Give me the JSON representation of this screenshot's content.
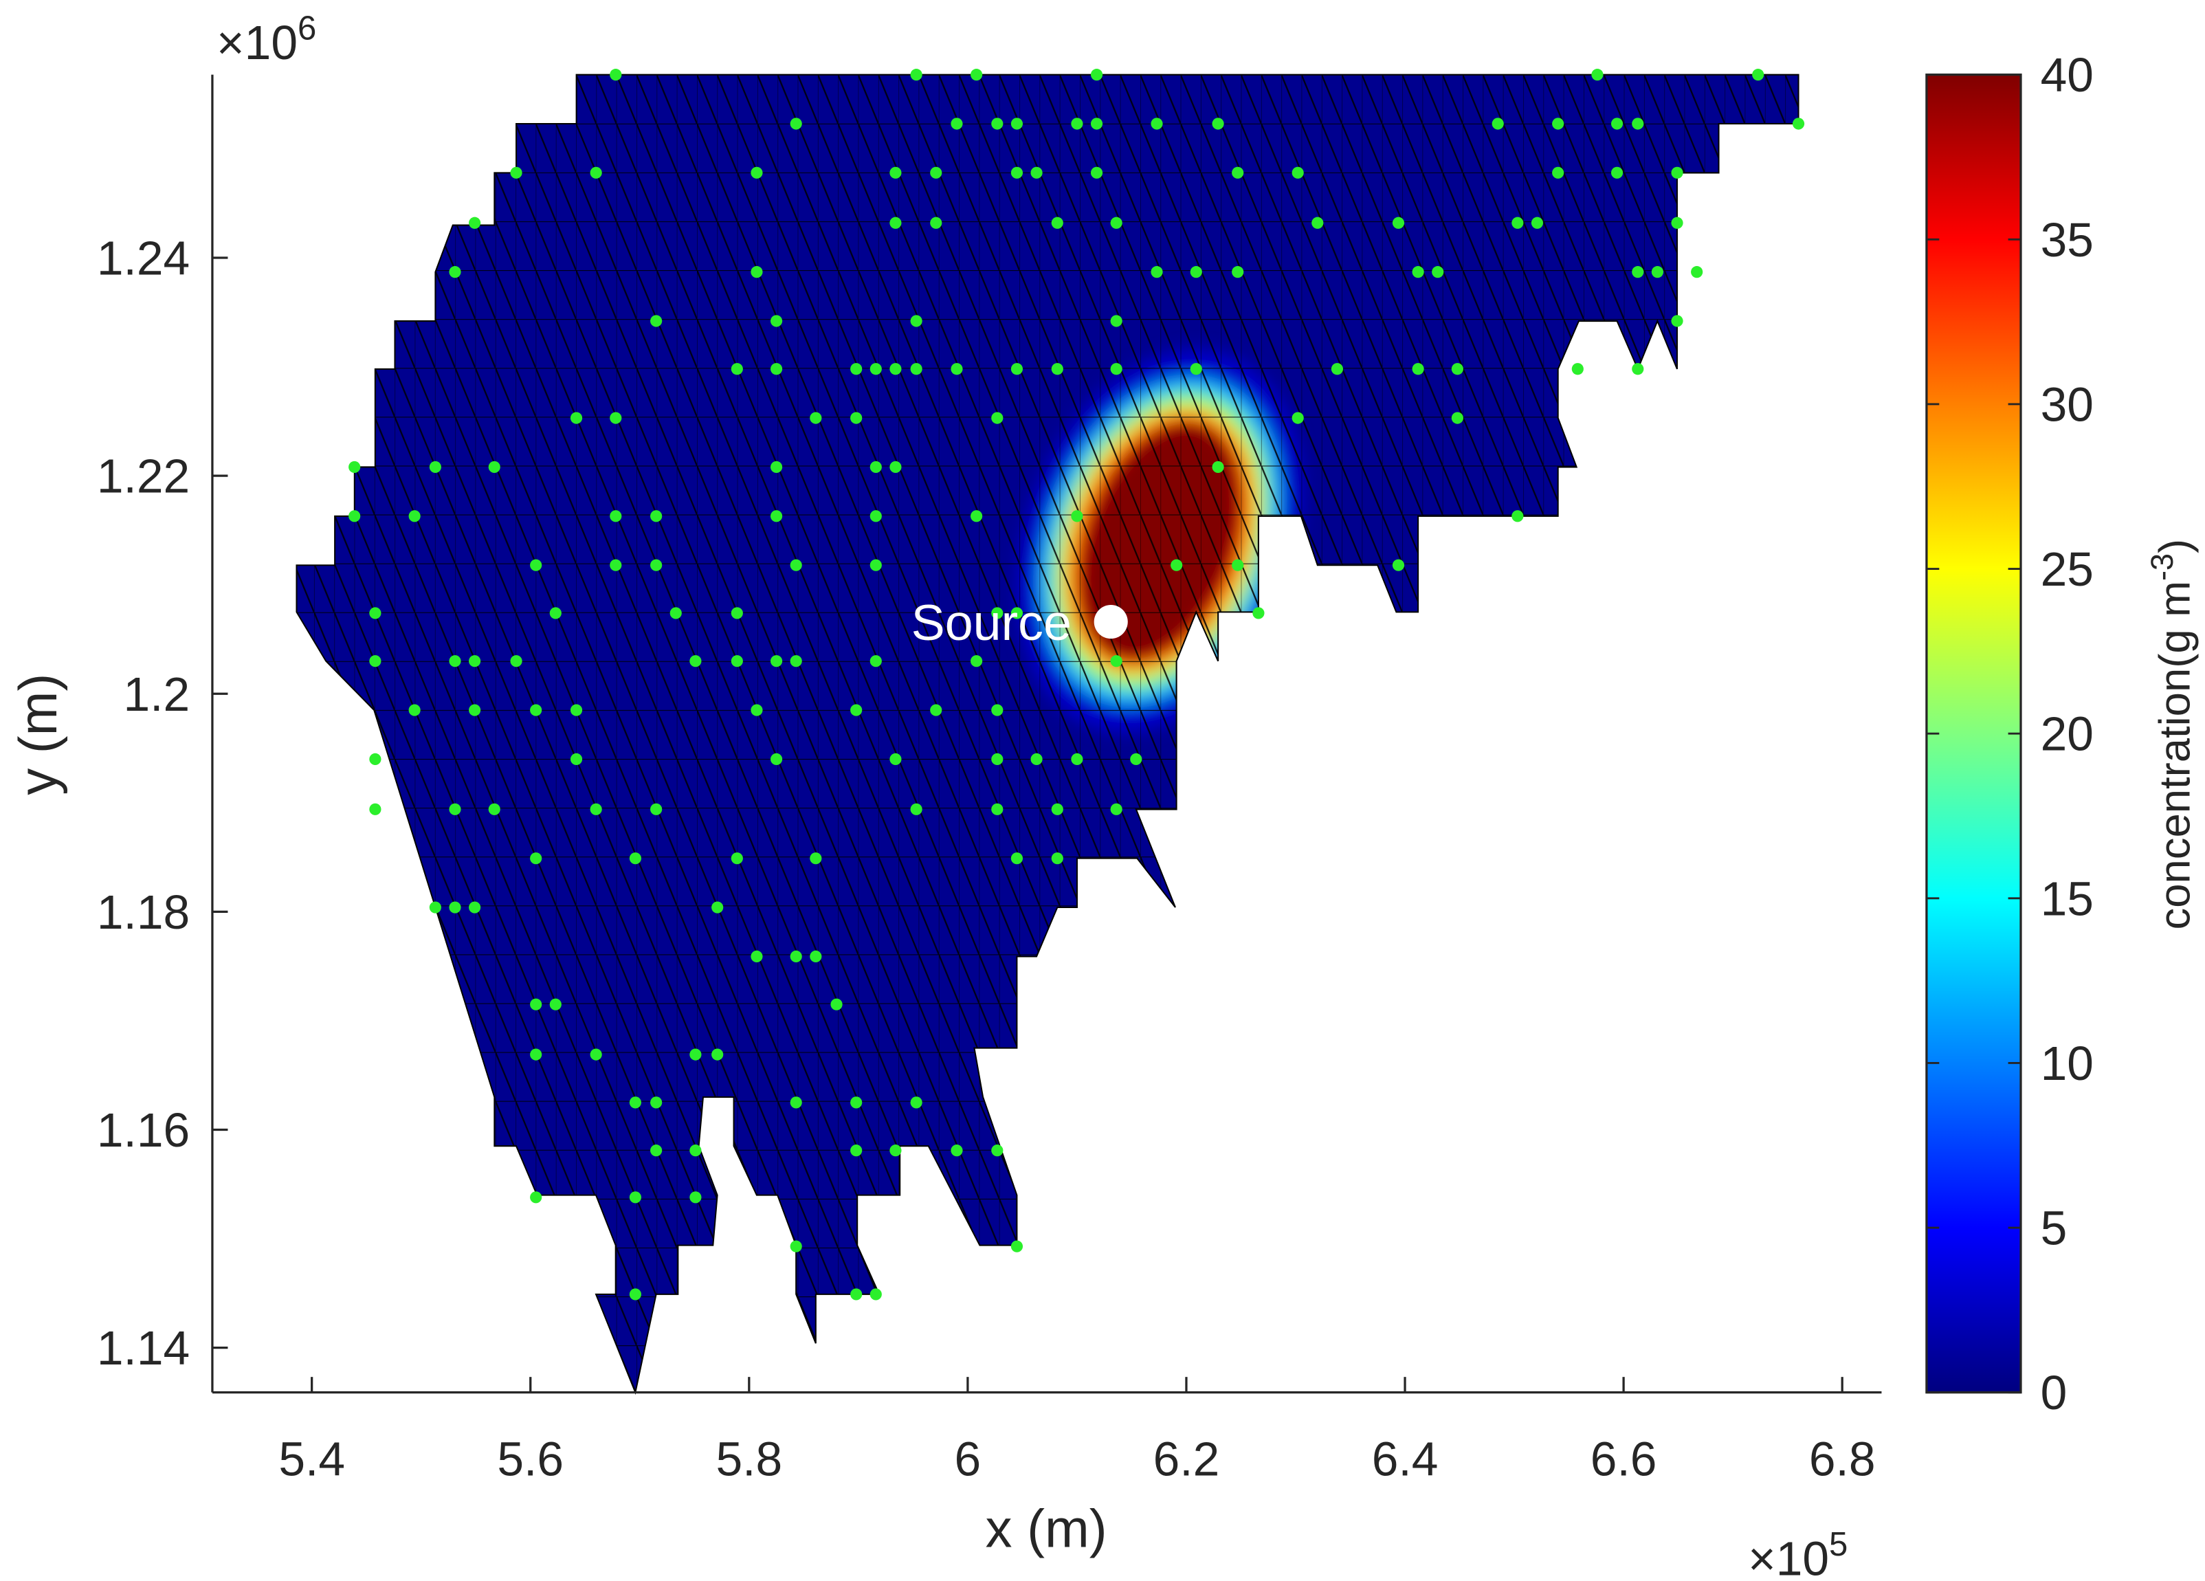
{
  "chart_data": {
    "type": "mesh",
    "xlabel": "x (m)",
    "ylabel": "y (m)",
    "x_multiplier": {
      "base": "×10",
      "power": "5"
    },
    "y_multiplier": {
      "base": "×10",
      "power": "6"
    },
    "xlim": [
      5.309,
      6.836
    ],
    "ylim": [
      1.1359,
      1.2568
    ],
    "xticks": [
      5.4,
      5.6,
      5.8,
      6,
      6.2,
      6.4,
      6.6,
      6.8
    ],
    "yticks": [
      1.14,
      1.16,
      1.18,
      1.2,
      1.22,
      1.24
    ],
    "domain": {
      "color": "#00008f",
      "mesh": true,
      "x": [
        5.642,
        6.76,
        6.76,
        6.687,
        6.687,
        6.649,
        6.649,
        6.631,
        6.613,
        6.594,
        6.559,
        6.54,
        6.54,
        6.557,
        6.54,
        6.54,
        6.412,
        6.412,
        6.392,
        6.375,
        6.32,
        6.305,
        6.266,
        6.266,
        6.229,
        6.229,
        6.209,
        6.191,
        6.191,
        6.154,
        6.19,
        6.155,
        6.1,
        6.1,
        6.082,
        6.063,
        6.045,
        6.045,
        6.006,
        6.014,
        6.045,
        6.045,
        6.011,
        5.964,
        5.938,
        5.938,
        5.899,
        5.899,
        5.919,
        5.861,
        5.861,
        5.843,
        5.843,
        5.826,
        5.807,
        5.786,
        5.786,
        5.758,
        5.754,
        5.771,
        5.767,
        5.735,
        5.735,
        5.715,
        5.696,
        5.66,
        5.678,
        5.678,
        5.66,
        5.606,
        5.587,
        5.567,
        5.567,
        5.457,
        5.413,
        5.386,
        5.386,
        5.421,
        5.421,
        5.439,
        5.439,
        5.458,
        5.458,
        5.476,
        5.476,
        5.513,
        5.513,
        5.529,
        5.567,
        5.567,
        5.587,
        5.587,
        5.642
      ],
      "y": [
        1.2568,
        1.2568,
        1.2523,
        1.2523,
        1.2478,
        1.2478,
        1.2298,
        1.2342,
        1.2298,
        1.2342,
        1.2342,
        1.2298,
        1.2253,
        1.2208,
        1.2208,
        1.2163,
        1.2163,
        1.2075,
        1.2075,
        1.2118,
        1.2118,
        1.2163,
        1.2163,
        1.2075,
        1.2075,
        1.203,
        1.2075,
        1.203,
        1.1894,
        1.1894,
        1.1804,
        1.1849,
        1.1849,
        1.1804,
        1.1804,
        1.1759,
        1.1759,
        1.1675,
        1.1675,
        1.163,
        1.154,
        1.1494,
        1.1494,
        1.1585,
        1.1585,
        1.154,
        1.154,
        1.1494,
        1.1449,
        1.1449,
        1.1404,
        1.1449,
        1.1494,
        1.154,
        1.154,
        1.1585,
        1.163,
        1.163,
        1.1585,
        1.154,
        1.1494,
        1.1494,
        1.1449,
        1.1449,
        1.1359,
        1.1449,
        1.1449,
        1.1494,
        1.154,
        1.154,
        1.1585,
        1.1585,
        1.163,
        1.1985,
        1.203,
        1.2075,
        1.2118,
        1.2118,
        1.2163,
        1.2163,
        1.2208,
        1.2208,
        1.2298,
        1.2298,
        1.2342,
        1.2342,
        1.2387,
        1.243,
        1.243,
        1.2478,
        1.2478,
        1.2523,
        1.2523
      ]
    },
    "field": {
      "x": 6.176,
      "y": 1.214,
      "levels": [
        3,
        12,
        20,
        27,
        34,
        40
      ],
      "rx": [
        0.122,
        0.103,
        0.093,
        0.084,
        0.075,
        0.067
      ],
      "ry": [
        0.0181,
        0.0155,
        0.0142,
        0.0129,
        0.012,
        0.0114
      ]
    },
    "sensors": {
      "color": "#2bef2b",
      "x": [
        5.678,
        5.953,
        6.008,
        6.118,
        6.576,
        6.723,
        5.843,
        5.99,
        6.027,
        6.045,
        6.1,
        6.118,
        6.173,
        6.229,
        6.485,
        6.54,
        6.594,
        6.613,
        6.76,
        5.587,
        5.66,
        5.807,
        5.934,
        5.971,
        6.045,
        6.063,
        6.118,
        6.247,
        6.302,
        6.54,
        6.594,
        6.649,
        5.549,
        5.934,
        5.971,
        6.082,
        6.136,
        6.32,
        6.394,
        6.503,
        6.521,
        6.649,
        5.531,
        5.807,
        6.173,
        6.209,
        6.247,
        6.412,
        6.43,
        6.613,
        6.631,
        6.667,
        5.715,
        5.825,
        5.953,
        6.136,
        6.649,
        5.789,
        5.825,
        5.898,
        5.916,
        5.934,
        5.953,
        5.99,
        6.045,
        6.082,
        6.136,
        6.209,
        6.338,
        6.412,
        6.448,
        6.558,
        6.613,
        5.642,
        5.678,
        5.861,
        5.898,
        6.027,
        6.302,
        6.448,
        5.439,
        5.513,
        5.567,
        5.825,
        5.916,
        5.934,
        6.229,
        5.439,
        5.494,
        5.678,
        5.715,
        5.825,
        5.916,
        6.008,
        6.1,
        6.503,
        5.605,
        5.678,
        5.715,
        5.843,
        5.916,
        6.191,
        6.247,
        6.394,
        5.458,
        5.623,
        5.733,
        5.789,
        6.027,
        6.045,
        6.136,
        6.266,
        5.458,
        5.531,
        5.549,
        5.587,
        5.751,
        5.789,
        5.825,
        5.843,
        5.916,
        6.008,
        6.136,
        5.494,
        5.549,
        5.605,
        5.642,
        5.807,
        5.898,
        5.971,
        6.027,
        5.458,
        5.642,
        5.825,
        5.934,
        6.027,
        6.063,
        6.1,
        6.154,
        5.458,
        5.531,
        5.567,
        5.66,
        5.715,
        5.953,
        6.027,
        6.082,
        6.136,
        5.605,
        5.696,
        5.789,
        5.861,
        6.045,
        6.082,
        5.513,
        5.531,
        5.549,
        5.771,
        5.807,
        5.843,
        5.861,
        5.605,
        5.623,
        5.88,
        5.605,
        5.66,
        5.751,
        5.771,
        5.696,
        5.715,
        5.843,
        5.898,
        5.953,
        5.715,
        5.751,
        5.898,
        5.934,
        5.99,
        6.027,
        5.605,
        5.696,
        5.751,
        5.843,
        6.045,
        5.696,
        5.898,
        5.916
      ],
      "y": [
        1.2568,
        1.2568,
        1.2568,
        1.2568,
        1.2568,
        1.2568,
        1.2523,
        1.2523,
        1.2523,
        1.2523,
        1.2523,
        1.2523,
        1.2523,
        1.2523,
        1.2523,
        1.2523,
        1.2523,
        1.2523,
        1.2523,
        1.2478,
        1.2478,
        1.2478,
        1.2478,
        1.2478,
        1.2478,
        1.2478,
        1.2478,
        1.2478,
        1.2478,
        1.2478,
        1.2478,
        1.2478,
        1.2432,
        1.2432,
        1.2432,
        1.2432,
        1.2432,
        1.2432,
        1.2432,
        1.2432,
        1.2432,
        1.2432,
        1.2387,
        1.2387,
        1.2387,
        1.2387,
        1.2387,
        1.2387,
        1.2387,
        1.2387,
        1.2387,
        1.2387,
        1.2342,
        1.2342,
        1.2342,
        1.2342,
        1.2342,
        1.2298,
        1.2298,
        1.2298,
        1.2298,
        1.2298,
        1.2298,
        1.2298,
        1.2298,
        1.2298,
        1.2298,
        1.2298,
        1.2298,
        1.2298,
        1.2298,
        1.2298,
        1.2298,
        1.2253,
        1.2253,
        1.2253,
        1.2253,
        1.2253,
        1.2253,
        1.2253,
        1.2208,
        1.2208,
        1.2208,
        1.2208,
        1.2208,
        1.2208,
        1.2208,
        1.2163,
        1.2163,
        1.2163,
        1.2163,
        1.2163,
        1.2163,
        1.2163,
        1.2163,
        1.2163,
        1.2118,
        1.2118,
        1.2118,
        1.2118,
        1.2118,
        1.2118,
        1.2118,
        1.2118,
        1.2074,
        1.2074,
        1.2074,
        1.2074,
        1.2074,
        1.2074,
        1.2074,
        1.2074,
        1.203,
        1.203,
        1.203,
        1.203,
        1.203,
        1.203,
        1.203,
        1.203,
        1.203,
        1.203,
        1.203,
        1.1985,
        1.1985,
        1.1985,
        1.1985,
        1.1985,
        1.1985,
        1.1985,
        1.1985,
        1.194,
        1.194,
        1.194,
        1.194,
        1.194,
        1.194,
        1.194,
        1.194,
        1.1894,
        1.1894,
        1.1894,
        1.1894,
        1.1894,
        1.1894,
        1.1894,
        1.1894,
        1.1894,
        1.1849,
        1.1849,
        1.1849,
        1.1849,
        1.1849,
        1.1849,
        1.1804,
        1.1804,
        1.1804,
        1.1804,
        1.1759,
        1.1759,
        1.1759,
        1.1715,
        1.1715,
        1.1715,
        1.1669,
        1.1669,
        1.1669,
        1.1669,
        1.1625,
        1.1625,
        1.1625,
        1.1625,
        1.1625,
        1.1581,
        1.1581,
        1.1581,
        1.1581,
        1.1581,
        1.1581,
        1.1538,
        1.1538,
        1.1538,
        1.1493,
        1.1493,
        1.1449,
        1.1449,
        1.1449
      ]
    },
    "source": {
      "label": "Source",
      "x": 6.131,
      "y": 1.2066,
      "color": "#ffffff"
    },
    "colorbar": {
      "colormap": "jet",
      "clim": [
        0,
        40
      ],
      "ticks": [
        0,
        5,
        10,
        15,
        20,
        25,
        30,
        35,
        40
      ],
      "label": {
        "text": "concentration(g m",
        "superscript": "-3",
        "end": ")"
      }
    }
  }
}
